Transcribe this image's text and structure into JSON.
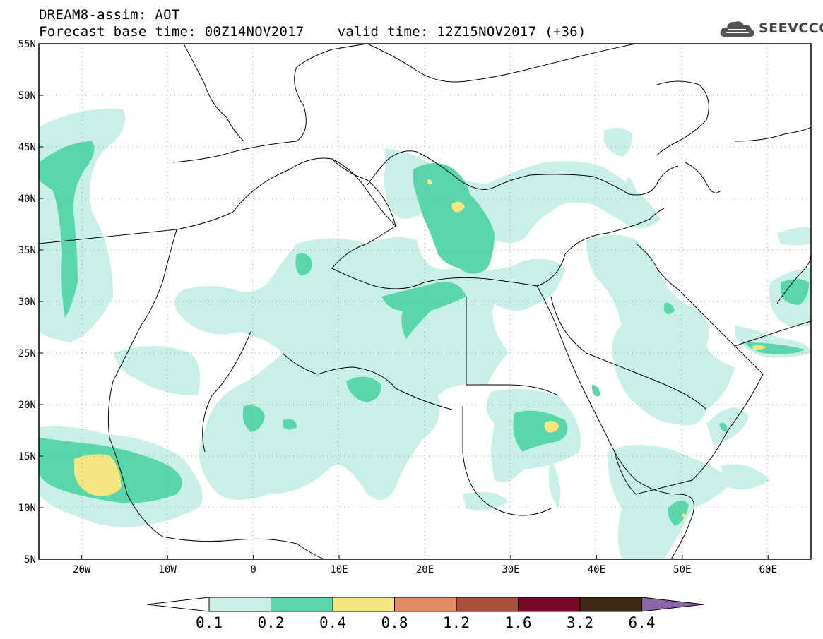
{
  "header": {
    "title_line1": "DREAM8-assim: AOT",
    "title_line2": "Forecast base time: 00Z14NOV2017    valid time: 12Z15NOV2017 (+36)"
  },
  "logo": {
    "text": "SEEVCCC",
    "icon": "cloud-logo-icon"
  },
  "map": {
    "lon_range": [
      -25,
      65
    ],
    "lat_range": [
      5,
      55
    ],
    "lat_ticks": [
      "5N",
      "10N",
      "15N",
      "20N",
      "25N",
      "30N",
      "35N",
      "40N",
      "45N",
      "50N",
      "55N"
    ],
    "lon_ticks": [
      "20W",
      "10W",
      "0",
      "10E",
      "20E",
      "30E",
      "40E",
      "50E",
      "60E"
    ],
    "grid": true
  },
  "colorbar": {
    "labels": [
      "0.1",
      "0.2",
      "0.4",
      "0.8",
      "1.2",
      "1.6",
      "3.2",
      "6.4"
    ],
    "colors": [
      "#c8f0e6",
      "#5ad7aa",
      "#f5e682",
      "#e68c64",
      "#aa503c",
      "#780a28",
      "#3c2814",
      "#8c64aa"
    ]
  }
}
